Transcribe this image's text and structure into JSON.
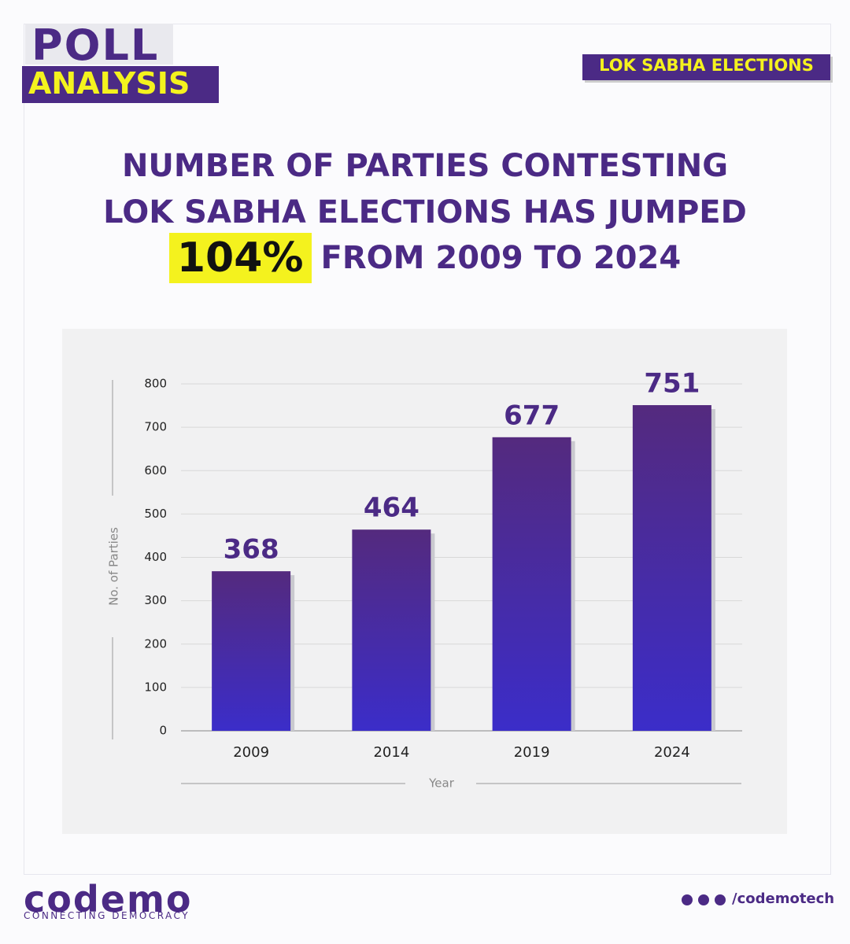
{
  "header": {
    "logo_top": "POLL",
    "logo_bottom": "ANALYSIS",
    "tag": "LOK SABHA ELECTIONS"
  },
  "chart_data": {
    "type": "bar",
    "title": [
      "NUMBER OF PARTIES CONTESTING",
      "LOK SABHA ELECTIONS HAS JUMPED",
      "104%",
      "FROM 2009 TO 2024"
    ],
    "categories": [
      "2009",
      "2014",
      "2019",
      "2024"
    ],
    "values": [
      368,
      464,
      677,
      751
    ],
    "color_top": "#542a7e",
    "color_bottom": "#3b2dc9",
    "xlabel": "Year",
    "ylabel": "No. of Parties",
    "ylim": [
      0,
      800
    ],
    "yticks": [
      0,
      100,
      200,
      300,
      400,
      500,
      600,
      700,
      800
    ],
    "grid": true
  },
  "footer": {
    "brand": "codemo",
    "tagline": "CONNECTING DEMOCRACY",
    "handle": "/codemotech"
  }
}
